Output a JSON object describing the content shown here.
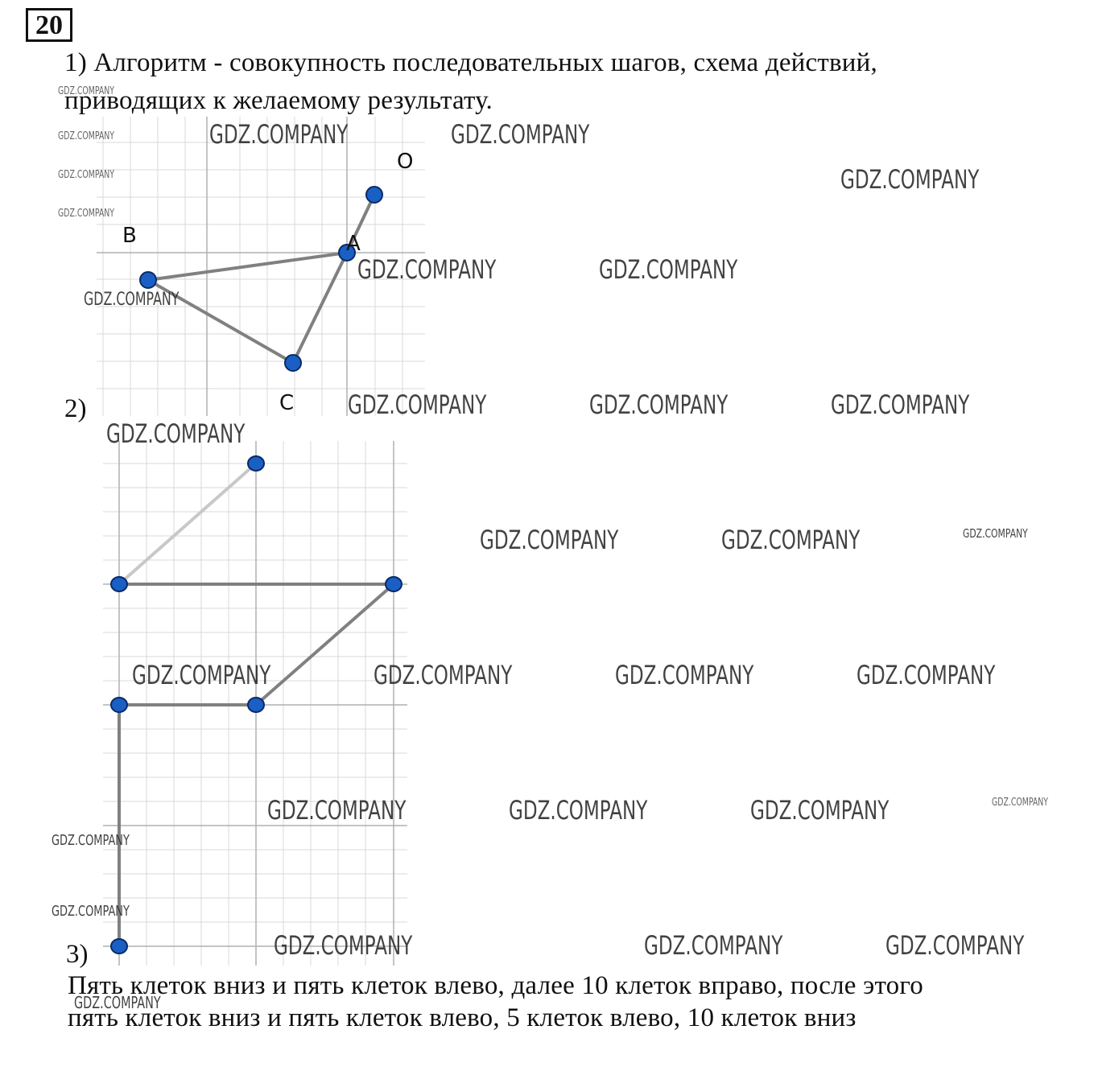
{
  "task_number": "20",
  "answer1": {
    "line1": "1) Алгоритм - совокупность последовательных шагов, схема действий,",
    "line2": "приводящих к желаемому результату."
  },
  "figure1": {
    "points": {
      "O": "O",
      "A": "A",
      "B": "B",
      "C": "C"
    }
  },
  "answer2": {
    "label": "2)"
  },
  "answer3": {
    "label": "3)",
    "line1": "Пять клеток вниз и пять клеток влево, далее 10 клеток вправо, после этого",
    "line2": "пять клеток вниз и пять клеток влево, 5 клеток влево, 10 клеток вниз"
  },
  "watermark": "GDZ.COMPANY",
  "colors": {
    "point_fill": "#1a5fc4",
    "point_stroke": "#0a2a66",
    "segment": "#808080",
    "grid": "#d9d9d9",
    "axis": "#b0b0b0"
  }
}
